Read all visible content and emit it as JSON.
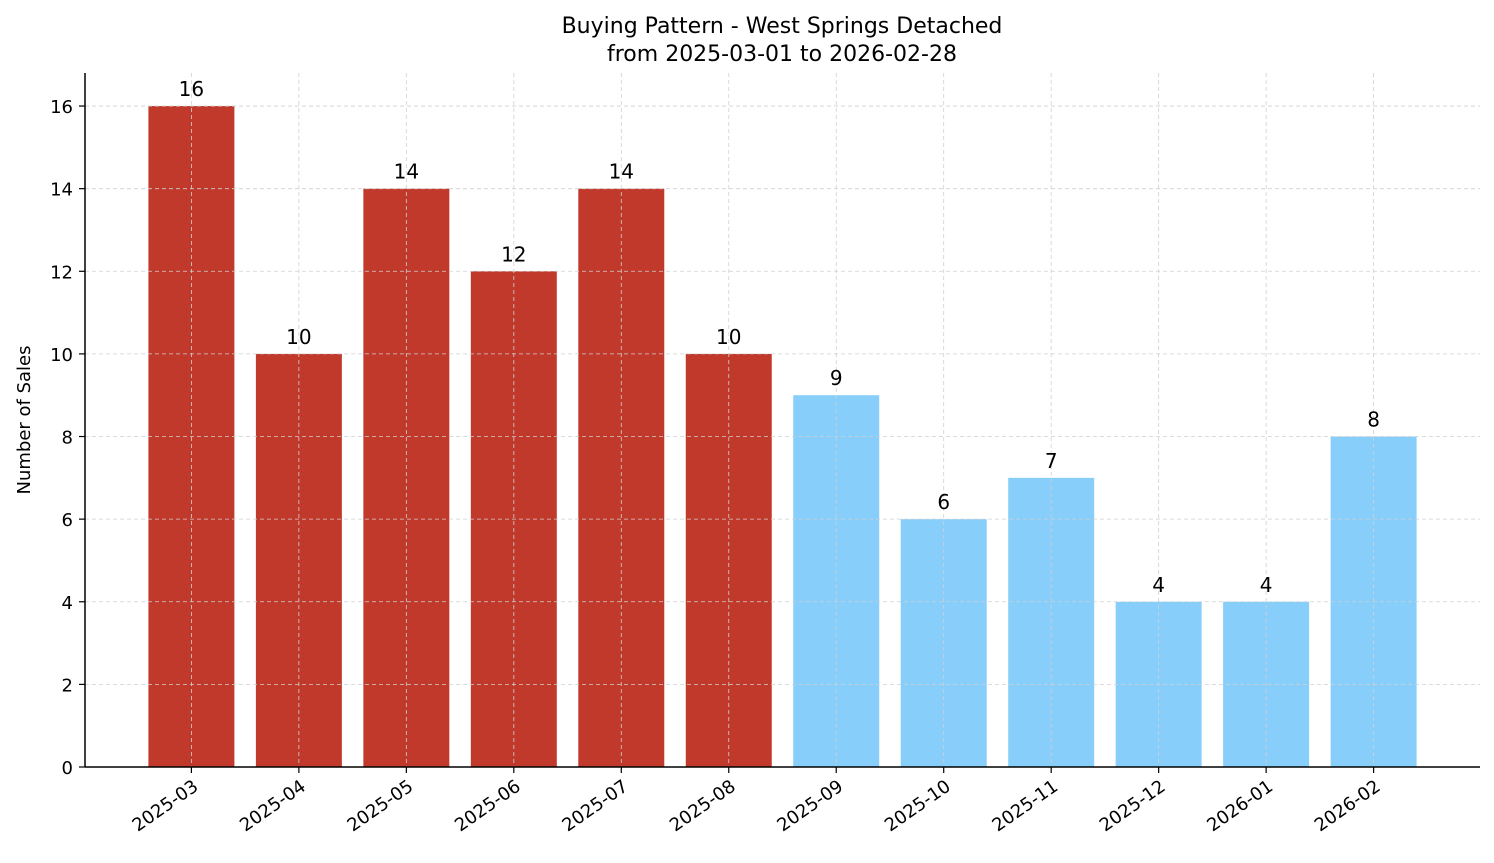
{
  "chart_data": {
    "type": "bar",
    "title": "Buying Pattern - West Springs Detached",
    "subtitle": "from 2025-03-01 to 2026-02-28",
    "xlabel": "",
    "ylabel": "Number of Sales",
    "categories": [
      "2025-03",
      "2025-04",
      "2025-05",
      "2025-06",
      "2025-07",
      "2025-08",
      "2025-09",
      "2025-10",
      "2025-11",
      "2025-12",
      "2026-01",
      "2026-02"
    ],
    "values": [
      16,
      10,
      14,
      12,
      14,
      10,
      9,
      6,
      7,
      4,
      4,
      8
    ],
    "bar_colors": [
      "#c0392b",
      "#c0392b",
      "#c0392b",
      "#c0392b",
      "#c0392b",
      "#c0392b",
      "#87cefa",
      "#87cefa",
      "#87cefa",
      "#87cefa",
      "#87cefa",
      "#87cefa"
    ],
    "ylim": [
      0,
      16.8
    ],
    "yticks": [
      0,
      2,
      4,
      6,
      8,
      10,
      12,
      14,
      16
    ],
    "grid": true,
    "data_labels": true
  }
}
